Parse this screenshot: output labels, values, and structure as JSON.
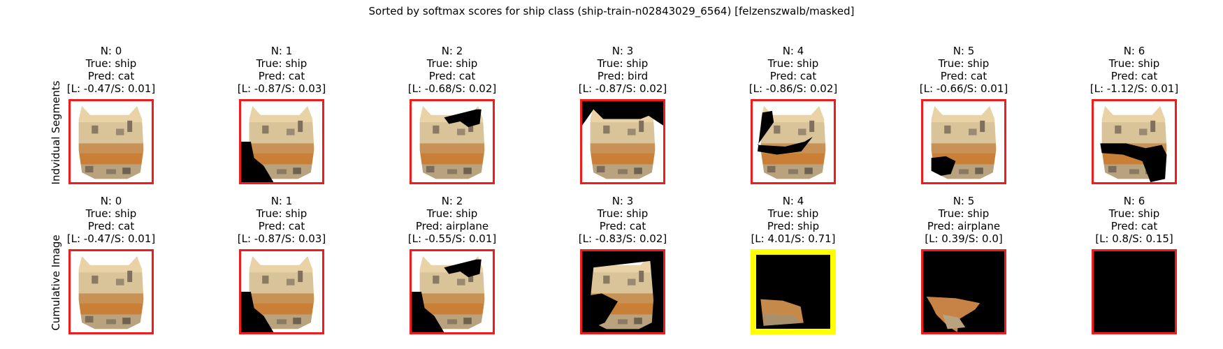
{
  "title": "Sorted by softmax scores for ship class (ship-train-n02843029_6564) [felzenszwalb/masked]",
  "row_labels": [
    "Indvidual Segments",
    "Cumulative Image"
  ],
  "colors": {
    "frame_default": "#ee1c1c",
    "frame_highlight": "#ffff00"
  },
  "rows": [
    {
      "name": "individual-segments",
      "panels": [
        {
          "n": "N: 0",
          "true": "True: ship",
          "pred": "Pred: cat",
          "score": "[L: -0.47/S: 0.01]",
          "mask": "none",
          "frame": "red"
        },
        {
          "n": "N: 1",
          "true": "True: ship",
          "pred": "Pred: cat",
          "score": "[L: -0.87/S: 0.03]",
          "mask": "bottom-left",
          "frame": "red"
        },
        {
          "n": "N: 2",
          "true": "True: ship",
          "pred": "Pred: cat",
          "score": "[L: -0.68/S: 0.02]",
          "mask": "top-right",
          "frame": "red"
        },
        {
          "n": "N: 3",
          "true": "True: ship",
          "pred": "Pred: bird",
          "score": "[L: -0.87/S: 0.02]",
          "mask": "top",
          "frame": "red"
        },
        {
          "n": "N: 4",
          "true": "True: ship",
          "pred": "Pred: cat",
          "score": "[L: -0.86/S: 0.02]",
          "mask": "middle-left",
          "frame": "red"
        },
        {
          "n": "N: 5",
          "true": "True: ship",
          "pred": "Pred: cat",
          "score": "[L: -0.66/S: 0.01]",
          "mask": "lower-left",
          "frame": "red"
        },
        {
          "n": "N: 6",
          "true": "True: ship",
          "pred": "Pred: cat",
          "score": "[L: -1.12/S: 0.01]",
          "mask": "middle-right",
          "frame": "red"
        }
      ]
    },
    {
      "name": "cumulative-image",
      "panels": [
        {
          "n": "N: 0",
          "true": "True: ship",
          "pred": "Pred: cat",
          "score": "[L: -0.47/S: 0.01]",
          "mask": "none",
          "frame": "red"
        },
        {
          "n": "N: 1",
          "true": "True: ship",
          "pred": "Pred: cat",
          "score": "[L: -0.87/S: 0.03]",
          "mask": "bottom-left",
          "frame": "red"
        },
        {
          "n": "N: 2",
          "true": "True: ship",
          "pred": "Pred: airplane",
          "score": "[L: -0.55/S: 0.01]",
          "mask": "bottom-left+top-right",
          "frame": "red"
        },
        {
          "n": "N: 3",
          "true": "True: ship",
          "pred": "Pred: cat",
          "score": "[L: -0.83/S: 0.02]",
          "mask": "cum-3",
          "frame": "red"
        },
        {
          "n": "N: 4",
          "true": "True: ship",
          "pred": "Pred: ship",
          "score": "[L: 4.01/S: 0.71]",
          "mask": "cum-4",
          "frame": "yellow"
        },
        {
          "n": "N: 5",
          "true": "True: ship",
          "pred": "Pred: airplane",
          "score": "[L: 0.39/S: 0.0]",
          "mask": "cum-5",
          "frame": "red"
        },
        {
          "n": "N: 6",
          "true": "True: ship",
          "pred": "Pred: cat",
          "score": "[L: 0.8/S: 0.15]",
          "mask": "all",
          "frame": "red"
        }
      ]
    }
  ]
}
